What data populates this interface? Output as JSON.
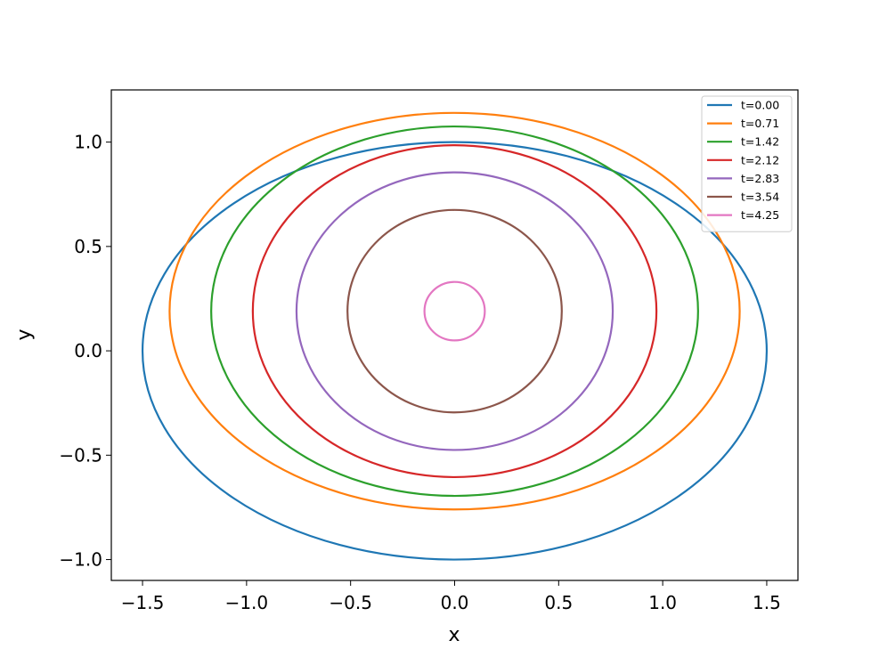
{
  "chart_data": {
    "type": "line",
    "title": "",
    "xlabel": "x",
    "ylabel": "y",
    "xlim": [
      -1.65,
      1.65
    ],
    "ylim": [
      -1.1,
      1.25
    ],
    "xticks": [
      -1.5,
      -1.0,
      -0.5,
      0.0,
      0.5,
      1.0,
      1.5
    ],
    "yticks": [
      -1.0,
      -0.5,
      0.0,
      0.5,
      1.0
    ],
    "xtick_labels": [
      "−1.5",
      "−1.0",
      "−0.5",
      "0.0",
      "0.5",
      "1.0",
      "1.5"
    ],
    "ytick_labels": [
      "−1.0",
      "−0.5",
      "0.0",
      "0.5",
      "1.0"
    ],
    "grid": false,
    "legend_position": "top-right",
    "series": [
      {
        "name": "t=0.00",
        "color": "#1f77b4",
        "center": [
          0.0,
          0.0
        ],
        "radius_x": 1.5,
        "radius_y": 1.0
      },
      {
        "name": "t=0.71",
        "color": "#ff7f0e",
        "center": [
          0.0,
          0.19
        ],
        "radius_x": 1.37,
        "radius_y": 0.95
      },
      {
        "name": "t=1.42",
        "color": "#2ca02c",
        "center": [
          0.0,
          0.19
        ],
        "radius_x": 1.17,
        "radius_y": 0.885
      },
      {
        "name": "t=2.12",
        "color": "#d62728",
        "center": [
          0.0,
          0.19
        ],
        "radius_x": 0.97,
        "radius_y": 0.795
      },
      {
        "name": "t=2.83",
        "color": "#9467bd",
        "center": [
          0.0,
          0.19
        ],
        "radius_x": 0.76,
        "radius_y": 0.665
      },
      {
        "name": "t=3.54",
        "color": "#8c564b",
        "center": [
          0.0,
          0.19
        ],
        "radius_x": 0.515,
        "radius_y": 0.485
      },
      {
        "name": "t=4.25",
        "color": "#e377c2",
        "center": [
          0.0,
          0.19
        ],
        "radius_x": 0.145,
        "radius_y": 0.14
      }
    ]
  }
}
